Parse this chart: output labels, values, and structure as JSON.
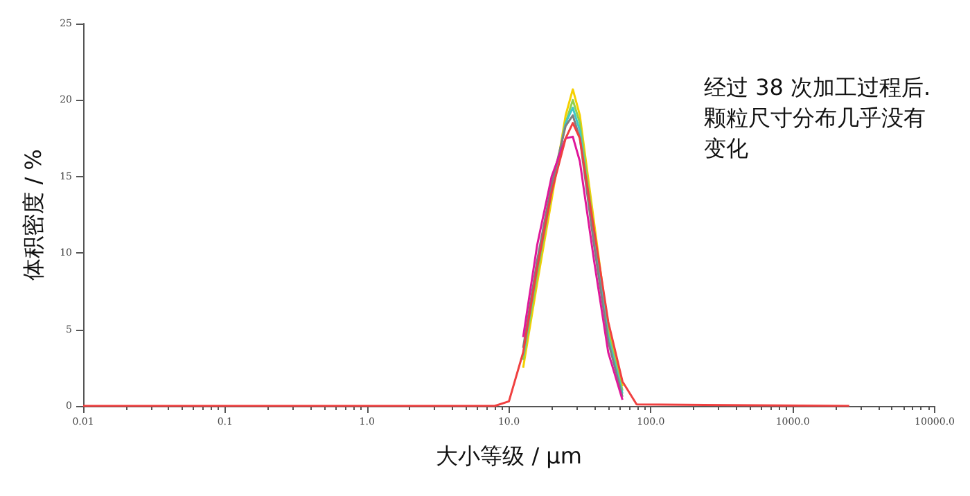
{
  "chart_data": {
    "type": "line",
    "xlabel": "大小等级 / µm",
    "ylabel": "体积密度 / %",
    "annotations": [
      "经过 38 次加工过程后.",
      "颗粒尺寸分布几乎没有",
      "变化"
    ],
    "log": "x",
    "x": [
      0.01,
      7.94,
      10,
      12.6,
      15.8,
      20,
      25.1,
      28.2,
      31.6,
      39.8,
      50.1,
      63.1,
      79.4,
      2500
    ],
    "xlim": [
      0.01,
      10000
    ],
    "xticks": [
      {
        "value": 0.01,
        "label": "0.01"
      },
      {
        "value": 0.1,
        "label": "0.1"
      },
      {
        "value": 1,
        "label": "1.0"
      },
      {
        "value": 10,
        "label": "10.0"
      },
      {
        "value": 100,
        "label": "100.0"
      },
      {
        "value": 1000,
        "label": "1000.0"
      },
      {
        "value": 10000,
        "label": "10000.0"
      }
    ],
    "ylim": [
      0,
      25
    ],
    "yticks": [
      0,
      5,
      10,
      15,
      20,
      25
    ],
    "grid": false,
    "marker": "none",
    "line_style": "solid",
    "series": [
      {
        "color": "#f5d000",
        "x": [
          12.6,
          15.8,
          20,
          25.1,
          28.2,
          31.6,
          39.8,
          50.1,
          63.1
        ],
        "values": [
          2.5,
          8,
          13.5,
          19,
          20.7,
          19,
          12,
          5,
          1.3
        ]
      },
      {
        "color": "#8fd14f",
        "x": [
          12.6,
          15.8,
          20,
          25.1,
          28.2,
          31.6,
          39.8,
          50.1,
          63.1
        ],
        "values": [
          3,
          8.5,
          14,
          18.5,
          20,
          18.5,
          11.5,
          4.8,
          1
        ]
      },
      {
        "color": "#3fc8c8",
        "x": [
          12.6,
          15.8,
          20,
          25.1,
          28.2,
          31.6,
          39.8,
          50.1,
          63.1
        ],
        "values": [
          3.3,
          9,
          14,
          18.5,
          19.5,
          18,
          11,
          4.5,
          0.8
        ]
      },
      {
        "color": "#808080",
        "x": [
          12.6,
          15.8,
          20,
          25.1,
          28.2,
          31.6,
          39.8,
          50.1,
          63.1
        ],
        "values": [
          3.8,
          9.5,
          14.5,
          18.3,
          19,
          17.5,
          10.5,
          4.2,
          0.6
        ]
      },
      {
        "color": "#e0189a",
        "x": [
          12.6,
          15.8,
          20,
          25.1,
          28.2,
          31.6,
          39.8,
          50.1,
          63.1
        ],
        "values": [
          4.5,
          10.5,
          15,
          17.5,
          17.6,
          16,
          9.5,
          3.5,
          0.4
        ]
      },
      {
        "color": "#f04040",
        "values": [
          0,
          0,
          0.3,
          3.5,
          9,
          14,
          17.5,
          18.5,
          17.5,
          11.5,
          5.5,
          1.6,
          0.1,
          0
        ]
      }
    ]
  }
}
